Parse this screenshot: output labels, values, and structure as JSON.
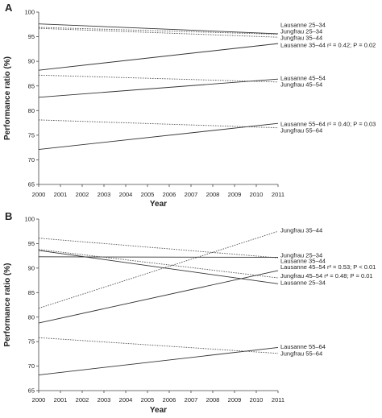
{
  "chart_data": [
    {
      "type": "line",
      "panel_label": "A",
      "xlabel": "Year",
      "ylabel": "Performance ratio (%)",
      "xlim": [
        2000,
        2011
      ],
      "ylim": [
        65,
        100
      ],
      "x_ticks": [
        "2000",
        "2001",
        "2002",
        "2003",
        "2004",
        "2005",
        "2006",
        "2007",
        "2008",
        "2009",
        "2010",
        "2011"
      ],
      "y_ticks": [
        "65",
        "70",
        "75",
        "80",
        "85",
        "90",
        "95",
        "100"
      ],
      "series": [
        {
          "name": "Lausanne 25–34",
          "style": "solid",
          "x": [
            2000,
            2011
          ],
          "y": [
            97.6,
            95.6
          ]
        },
        {
          "name": "Jungfrau 25–34",
          "style": "dotted",
          "x": [
            2000,
            2011
          ],
          "y": [
            96.9,
            95.5
          ]
        },
        {
          "name": "Jungfrau 35–44",
          "style": "dotted",
          "x": [
            2000,
            2011
          ],
          "y": [
            96.7,
            94.9
          ]
        },
        {
          "name": "Lausanne 35–44",
          "style": "solid",
          "x": [
            2000,
            2011
          ],
          "y": [
            88.2,
            93.6
          ]
        },
        {
          "name": "Lausanne 45–54",
          "style": "solid",
          "x": [
            2000,
            2011
          ],
          "y": [
            82.7,
            86.4
          ]
        },
        {
          "name": "Jungfrau 45–54",
          "style": "dotted",
          "x": [
            2000,
            2011
          ],
          "y": [
            87.2,
            85.8
          ]
        },
        {
          "name": "Lausanne 55–64",
          "style": "solid",
          "x": [
            2000,
            2011
          ],
          "y": [
            72.1,
            77.4
          ]
        },
        {
          "name": "Jungfrau 55–64",
          "style": "dotted",
          "x": [
            2000,
            2011
          ],
          "y": [
            78.1,
            76.5
          ]
        }
      ],
      "labels": [
        {
          "text": "Lausanne 25–34",
          "y": 97.4,
          "stat": ""
        },
        {
          "text": "Jungfrau 25–34",
          "y": 96.1,
          "stat": ""
        },
        {
          "text": "Jungfrau 35–44",
          "y": 94.8,
          "stat": ""
        },
        {
          "text": "Lausanne 35–44",
          "y": 93.3,
          "stat": "r² = 0.42; P = 0.02"
        },
        {
          "text": "Lausanne 45–54",
          "y": 86.6,
          "stat": ""
        },
        {
          "text": "Jungfrau 45–54",
          "y": 85.3,
          "stat": ""
        },
        {
          "text": "Lausanne 55–64",
          "y": 77.3,
          "stat": "r² = 0.40; P = 0.03"
        },
        {
          "text": "Jungfrau 55–64",
          "y": 76.0,
          "stat": ""
        }
      ]
    },
    {
      "type": "line",
      "panel_label": "B",
      "xlabel": "Year",
      "ylabel": "Performance ratio (%)",
      "xlim": [
        2000,
        2011
      ],
      "ylim": [
        65,
        100
      ],
      "x_ticks": [
        "2000",
        "2001",
        "2002",
        "2003",
        "2004",
        "2005",
        "2006",
        "2007",
        "2008",
        "2009",
        "2010",
        "2011"
      ],
      "y_ticks": [
        "65",
        "70",
        "75",
        "80",
        "85",
        "90",
        "95",
        "100"
      ],
      "series": [
        {
          "name": "Jungfrau 35–44",
          "style": "dotted",
          "x": [
            2000,
            2011
          ],
          "y": [
            81.8,
            97.5
          ]
        },
        {
          "name": "Jungfrau 25–34",
          "style": "dotted",
          "x": [
            2000,
            2011
          ],
          "y": [
            96.1,
            92.1
          ]
        },
        {
          "name": "Lausanne 35–44",
          "style": "solid",
          "x": [
            2000,
            2011
          ],
          "y": [
            92.3,
            92.2
          ]
        },
        {
          "name": "Lausanne 45–54",
          "style": "solid",
          "x": [
            2000,
            2011
          ],
          "y": [
            78.8,
            89.5
          ]
        },
        {
          "name": "Jungfrau 45–54",
          "style": "dotted",
          "x": [
            2000,
            2011
          ],
          "y": [
            93.8,
            88.0
          ]
        },
        {
          "name": "Lausanne 25–34",
          "style": "solid",
          "x": [
            2000,
            2011
          ],
          "y": [
            93.6,
            86.8
          ]
        },
        {
          "name": "Lausanne 55–64",
          "style": "solid",
          "x": [
            2000,
            2011
          ],
          "y": [
            68.2,
            73.8
          ]
        },
        {
          "name": "Jungfrau 55–64",
          "style": "dotted",
          "x": [
            2000,
            2011
          ],
          "y": [
            75.8,
            72.6
          ]
        }
      ],
      "labels": [
        {
          "text": "Jungfrau 35–44",
          "y": 97.7,
          "stat": ""
        },
        {
          "text": "Jungfrau 25–34",
          "y": 92.6,
          "stat": ""
        },
        {
          "text": "Lausanne 35–44",
          "y": 91.5,
          "stat": ""
        },
        {
          "text": "Lausanne 45–54",
          "y": 90.2,
          "stat": "r² = 0.53; P < 0.01"
        },
        {
          "text": "Jungfrau 45–54",
          "y": 88.4,
          "stat": "r² = 0.48; P = 0.01"
        },
        {
          "text": "Lausanne 25–34",
          "y": 87.0,
          "stat": ""
        },
        {
          "text": "Lausanne 55–64",
          "y": 74.0,
          "stat": ""
        },
        {
          "text": "Jungfrau 55–64",
          "y": 72.6,
          "stat": ""
        }
      ]
    }
  ]
}
